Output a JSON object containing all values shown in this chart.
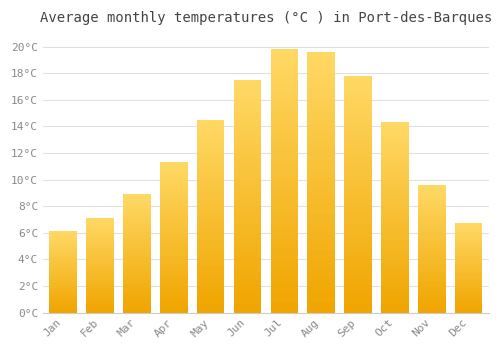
{
  "title": "Average monthly temperatures (°C ) in Port-des-Barques",
  "months": [
    "Jan",
    "Feb",
    "Mar",
    "Apr",
    "May",
    "Jun",
    "Jul",
    "Aug",
    "Sep",
    "Oct",
    "Nov",
    "Dec"
  ],
  "values": [
    6.1,
    7.1,
    8.9,
    11.3,
    14.5,
    17.5,
    19.8,
    19.6,
    17.8,
    14.3,
    9.6,
    6.7
  ],
  "bar_color_top": "#FFD966",
  "bar_color_bottom": "#F0A500",
  "background_color": "#FFFFFF",
  "grid_color": "#E0E0E0",
  "ytick_labels": [
    "0°C",
    "2°C",
    "4°C",
    "6°C",
    "8°C",
    "10°C",
    "12°C",
    "14°C",
    "16°C",
    "18°C",
    "20°C"
  ],
  "ytick_values": [
    0,
    2,
    4,
    6,
    8,
    10,
    12,
    14,
    16,
    18,
    20
  ],
  "ylim": [
    0,
    21
  ],
  "title_fontsize": 10,
  "tick_fontsize": 8,
  "tick_color": "#888888",
  "title_color": "#444444",
  "bar_width": 0.75
}
